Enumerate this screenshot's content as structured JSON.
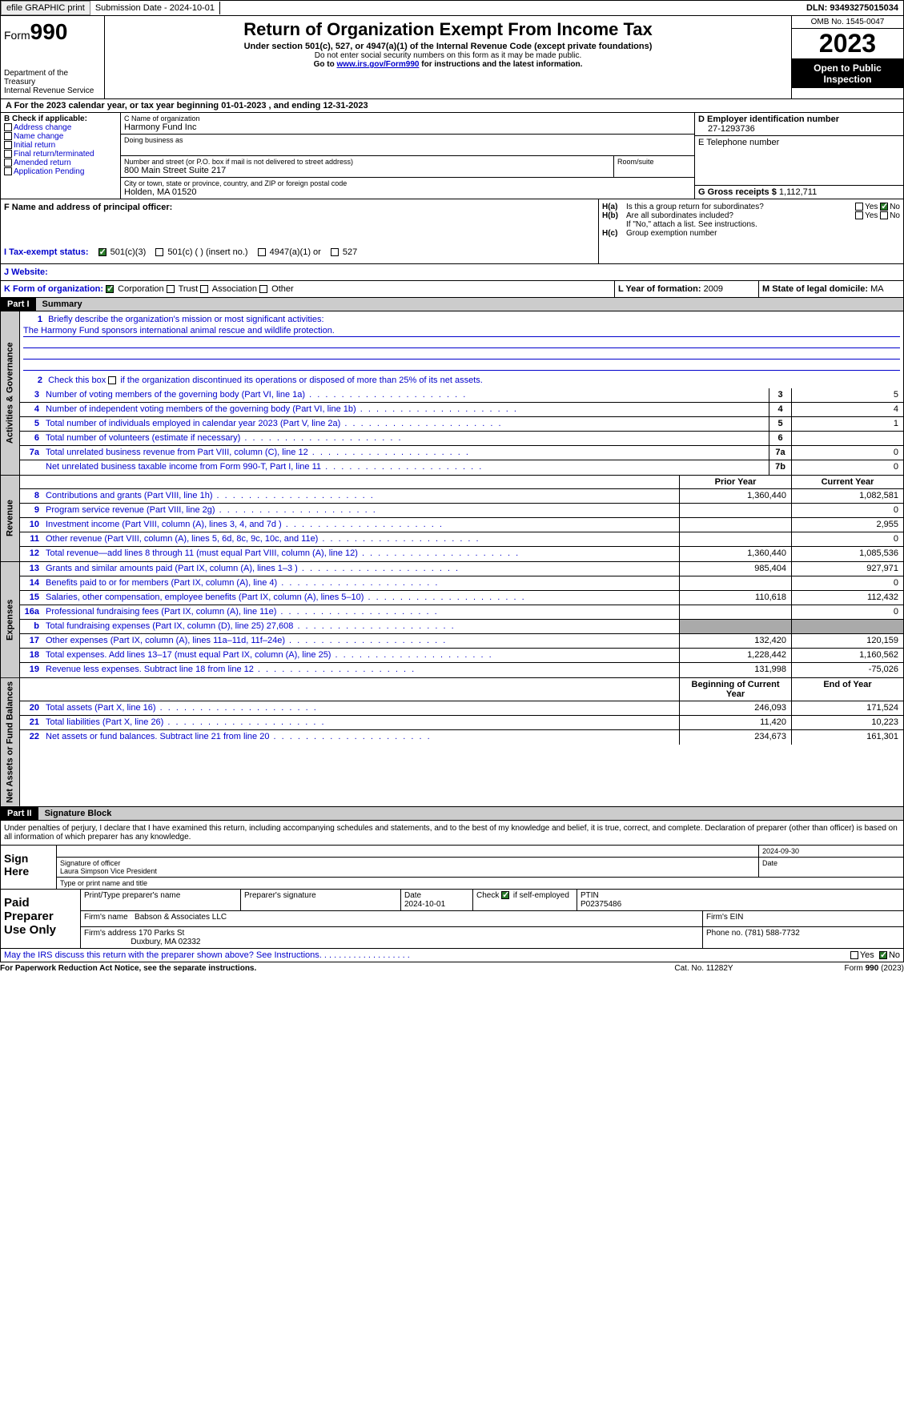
{
  "topbar": {
    "efile": "efile GRAPHIC print",
    "submission": "Submission Date - 2024-10-01",
    "dln": "DLN: 93493275015034"
  },
  "header": {
    "form_prefix": "Form",
    "form_num": "990",
    "dept": "Department of the Treasury",
    "irs": "Internal Revenue Service",
    "title": "Return of Organization Exempt From Income Tax",
    "subtitle": "Under section 501(c), 527, or 4947(a)(1) of the Internal Revenue Code (except private foundations)",
    "note1": "Do not enter social security numbers on this form as it may be made public.",
    "note2_pre": "Go to ",
    "note2_link": "www.irs.gov/Form990",
    "note2_post": " for instructions and the latest information.",
    "omb": "OMB No. 1545-0047",
    "year": "2023",
    "open": "Open to Public Inspection"
  },
  "taxyear": "A For the 2023 calendar year, or tax year beginning 01-01-2023    , and ending 12-31-2023",
  "boxB": {
    "label": "B Check if applicable:",
    "items": [
      "Address change",
      "Name change",
      "Initial return",
      "Final return/terminated",
      "Amended return",
      "Application Pending"
    ]
  },
  "boxC": {
    "name_label": "C Name of organization",
    "name": "Harmony Fund Inc",
    "dba_label": "Doing business as",
    "addr_label": "Number and street (or P.O. box if mail is not delivered to street address)",
    "addr": "800 Main Street Suite 217",
    "room_label": "Room/suite",
    "city_label": "City or town, state or province, country, and ZIP or foreign postal code",
    "city": "Holden, MA  01520"
  },
  "boxD": {
    "label": "D Employer identification number",
    "value": "27-1293736"
  },
  "boxE": {
    "label": "E Telephone number"
  },
  "boxG": {
    "label": "G Gross receipts $",
    "value": "1,112,711"
  },
  "boxF": {
    "label": "F  Name and address of principal officer:"
  },
  "boxH": {
    "a_label": "H(a)",
    "a_text": "Is this a group return for subordinates?",
    "b_label": "H(b)",
    "b_text": "Are all subordinates included?",
    "b_note": "If \"No,\" attach a list. See instructions.",
    "c_label": "H(c)",
    "c_text": "Group exemption number",
    "yes": "Yes",
    "no": "No"
  },
  "boxI": {
    "label": "I  Tax-exempt status:",
    "opts": [
      "501(c)(3)",
      "501(c) (  ) (insert no.)",
      "4947(a)(1) or",
      "527"
    ]
  },
  "boxJ": {
    "label": "J  Website:"
  },
  "boxK": {
    "label": "K Form of organization:",
    "opts": [
      "Corporation",
      "Trust",
      "Association",
      "Other"
    ]
  },
  "boxL": {
    "label": "L Year of formation:",
    "value": "2009"
  },
  "boxM": {
    "label": "M State of legal domicile:",
    "value": "MA"
  },
  "part1": {
    "num": "Part I",
    "title": "Summary"
  },
  "summary": {
    "line1_label": "Briefly describe the organization's mission or most significant activities:",
    "line1_text": "The Harmony Fund sponsors international animal rescue and wildlife protection.",
    "line2": "Check this box      if the organization discontinued its operations or disposed of more than 25% of its net assets.",
    "governance": [
      {
        "n": "3",
        "t": "Number of voting members of the governing body (Part VI, line 1a)",
        "b": "3",
        "v": "5"
      },
      {
        "n": "4",
        "t": "Number of independent voting members of the governing body (Part VI, line 1b)",
        "b": "4",
        "v": "4"
      },
      {
        "n": "5",
        "t": "Total number of individuals employed in calendar year 2023 (Part V, line 2a)",
        "b": "5",
        "v": "1"
      },
      {
        "n": "6",
        "t": "Total number of volunteers (estimate if necessary)",
        "b": "6",
        "v": ""
      },
      {
        "n": "7a",
        "t": "Total unrelated business revenue from Part VIII, column (C), line 12",
        "b": "7a",
        "v": "0"
      },
      {
        "n": "",
        "t": "Net unrelated business taxable income from Form 990-T, Part I, line 11",
        "b": "7b",
        "v": "0"
      }
    ],
    "prior_hdr": "Prior Year",
    "current_hdr": "Current Year",
    "revenue": [
      {
        "n": "8",
        "t": "Contributions and grants (Part VIII, line 1h)",
        "p": "1,360,440",
        "c": "1,082,581"
      },
      {
        "n": "9",
        "t": "Program service revenue (Part VIII, line 2g)",
        "p": "",
        "c": "0"
      },
      {
        "n": "10",
        "t": "Investment income (Part VIII, column (A), lines 3, 4, and 7d )",
        "p": "",
        "c": "2,955"
      },
      {
        "n": "11",
        "t": "Other revenue (Part VIII, column (A), lines 5, 6d, 8c, 9c, 10c, and 11e)",
        "p": "",
        "c": "0"
      },
      {
        "n": "12",
        "t": "Total revenue—add lines 8 through 11 (must equal Part VIII, column (A), line 12)",
        "p": "1,360,440",
        "c": "1,085,536"
      }
    ],
    "expenses": [
      {
        "n": "13",
        "t": "Grants and similar amounts paid (Part IX, column (A), lines 1–3 )",
        "p": "985,404",
        "c": "927,971"
      },
      {
        "n": "14",
        "t": "Benefits paid to or for members (Part IX, column (A), line 4)",
        "p": "",
        "c": "0"
      },
      {
        "n": "15",
        "t": "Salaries, other compensation, employee benefits (Part IX, column (A), lines 5–10)",
        "p": "110,618",
        "c": "112,432"
      },
      {
        "n": "16a",
        "t": "Professional fundraising fees (Part IX, column (A), line 11e)",
        "p": "",
        "c": "0"
      },
      {
        "n": "b",
        "t": "Total fundraising expenses (Part IX, column (D), line 25) 27,608",
        "p": "shade",
        "c": "shade"
      },
      {
        "n": "17",
        "t": "Other expenses (Part IX, column (A), lines 11a–11d, 11f–24e)",
        "p": "132,420",
        "c": "120,159"
      },
      {
        "n": "18",
        "t": "Total expenses. Add lines 13–17 (must equal Part IX, column (A), line 25)",
        "p": "1,228,442",
        "c": "1,160,562"
      },
      {
        "n": "19",
        "t": "Revenue less expenses. Subtract line 18 from line 12",
        "p": "131,998",
        "c": "-75,026"
      }
    ],
    "assets_hdr_p": "Beginning of Current Year",
    "assets_hdr_c": "End of Year",
    "assets": [
      {
        "n": "20",
        "t": "Total assets (Part X, line 16)",
        "p": "246,093",
        "c": "171,524"
      },
      {
        "n": "21",
        "t": "Total liabilities (Part X, line 26)",
        "p": "11,420",
        "c": "10,223"
      },
      {
        "n": "22",
        "t": "Net assets or fund balances. Subtract line 21 from line 20",
        "p": "234,673",
        "c": "161,301"
      }
    ],
    "tabs": {
      "gov": "Activities & Governance",
      "rev": "Revenue",
      "exp": "Expenses",
      "net": "Net Assets or Fund Balances"
    }
  },
  "part2": {
    "num": "Part II",
    "title": "Signature Block"
  },
  "sig": {
    "penalty": "Under penalties of perjury, I declare that I have examined this return, including accompanying schedules and statements, and to the best of my knowledge and belief, it is true, correct, and complete. Declaration of preparer (other than officer) is based on all information of which preparer has any knowledge.",
    "sign_here": "Sign Here",
    "date": "2024-09-30",
    "sig_officer": "Signature of officer",
    "officer": "Laura Simpson  Vice President",
    "type_name": "Type or print name and title",
    "date_lbl": "Date"
  },
  "prep": {
    "label": "Paid Preparer Use Only",
    "h1": "Print/Type preparer's name",
    "h2": "Preparer's signature",
    "h3": "Date",
    "h3v": "2024-10-01",
    "h4": "Check        if self-employed",
    "h5": "PTIN",
    "h5v": "P02375486",
    "firm_lbl": "Firm's name",
    "firm": "Babson & Associates LLC",
    "ein_lbl": "Firm's EIN",
    "addr_lbl": "Firm's address",
    "addr1": "170 Parks St",
    "addr2": "Duxbury, MA  02332",
    "phone_lbl": "Phone no.",
    "phone": "(781) 588-7732"
  },
  "discuss": {
    "text": "May the IRS discuss this return with the preparer shown above? See Instructions.",
    "yes": "Yes",
    "no": "No"
  },
  "footer": {
    "left": "For Paperwork Reduction Act Notice, see the separate instructions.",
    "mid": "Cat. No. 11282Y",
    "right_pre": "Form ",
    "right_form": "990",
    "right_post": " (2023)"
  }
}
